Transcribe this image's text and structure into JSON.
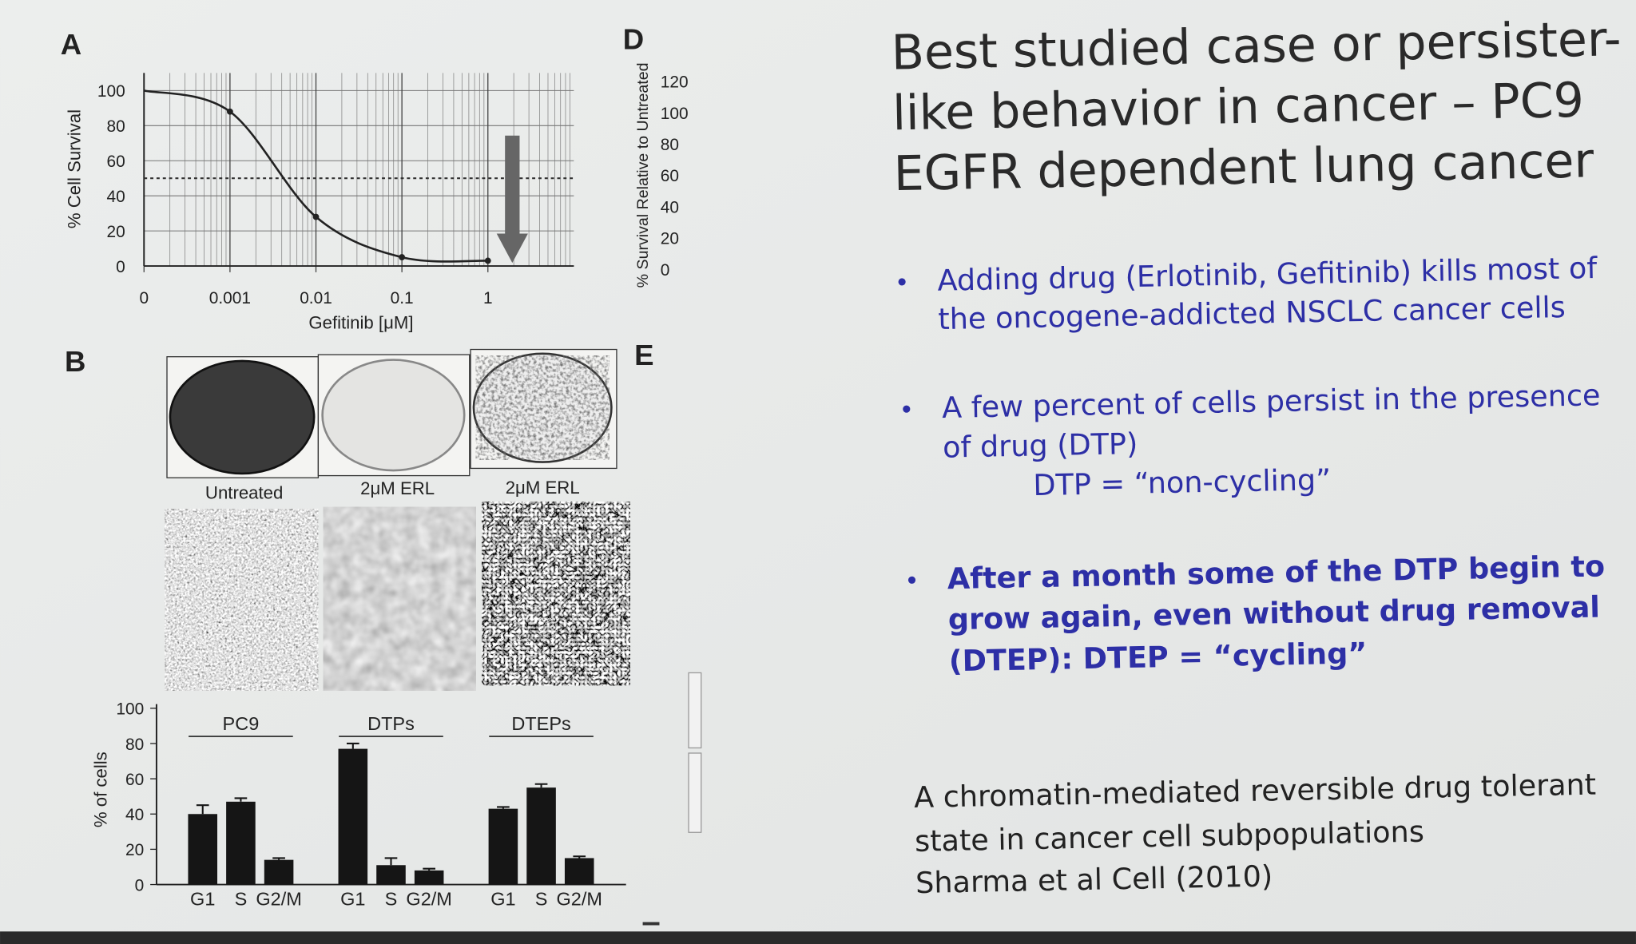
{
  "slide": {
    "title_lines": [
      "Best studied case or persister-",
      "like behavior in cancer – PC9",
      "EGFR dependent lung cancer"
    ],
    "bullets": [
      {
        "lines": [
          "Adding drug (Erlotinib, Gefitinib) kills most of",
          "the oncogene-addicted NSCLC cancer cells"
        ]
      },
      {
        "lines": [
          "A few percent of cells persist in the presence",
          "of drug (DTP)"
        ],
        "note": "DTP  = “non-cycling”"
      },
      {
        "lines": [
          "After a month some of the DTP begin to",
          "grow again, even without drug removal",
          "(DTEP): DTEP = “cycling”"
        ]
      }
    ],
    "citation_lines": [
      "A chromatin-mediated reversible drug tolerant",
      "state in cancer cell subpopulations",
      "Sharma et al Cell (2010)"
    ]
  },
  "panel_labels": [
    "A",
    "B",
    "D",
    "E"
  ],
  "image_labels": [
    "Untreated",
    "2μM ERL",
    "2μM ERL"
  ],
  "chart_data": [
    {
      "type": "line",
      "ylabel": "% Cell Survival",
      "xlabel": "Gefitinib [μM]",
      "xscale": "log",
      "x": [
        0,
        0.001,
        0.01,
        0.1,
        1
      ],
      "values": [
        100,
        88,
        28,
        5,
        3
      ],
      "xlim": [
        0,
        10
      ],
      "xticks": [
        0,
        0.001,
        0.01,
        0.1,
        1
      ],
      "ylim": [
        0,
        110
      ],
      "yticks": [
        0,
        20,
        40,
        60,
        80,
        100
      ],
      "hline": 50,
      "grid": true,
      "color": "#222222"
    },
    {
      "type": "axis",
      "ylabel": "% Survival Relative to Untreated",
      "ylim": [
        0,
        120
      ],
      "yticks": [
        0,
        20,
        40,
        60,
        80,
        100,
        120
      ]
    },
    {
      "type": "bar",
      "ylabel": "% of cells",
      "groups": [
        "PC9",
        "DTPs",
        "DTEPs"
      ],
      "categories": [
        "G1",
        "S",
        "G2/M",
        "G1",
        "S",
        "G2/M",
        "G1",
        "S",
        "G2/M"
      ],
      "values": [
        40,
        47,
        14,
        77,
        11,
        8,
        43,
        55,
        15
      ],
      "errors": [
        5,
        2,
        1,
        3,
        4,
        1,
        1,
        2,
        1
      ],
      "ylim": [
        0,
        100
      ],
      "yticks": [
        0,
        20,
        40,
        60,
        80,
        100
      ],
      "color": "#151515"
    }
  ]
}
